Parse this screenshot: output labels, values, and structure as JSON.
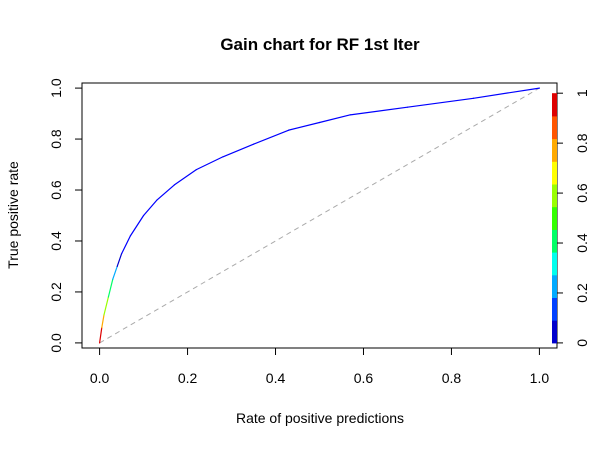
{
  "chart_data": {
    "type": "line",
    "title": "Gain chart for RF 1st Iter",
    "xlabel": "Rate of positive predictions",
    "ylabel": "True positive rate",
    "xlim": [
      -0.04,
      1.04
    ],
    "ylim": [
      -0.02,
      1.02
    ],
    "x_ticks": [
      0.0,
      0.2,
      0.4,
      0.6,
      0.8,
      1.0
    ],
    "x_tick_labels": [
      "0.0",
      "0.2",
      "0.4",
      "0.6",
      "0.8",
      "1.0"
    ],
    "y_ticks": [
      0.0,
      0.2,
      0.4,
      0.6,
      0.8,
      1.0
    ],
    "y_tick_labels": [
      "0.0",
      "0.2",
      "0.4",
      "0.6",
      "0.8",
      "1.0"
    ],
    "grid": false,
    "reference_line": {
      "style": "dashed",
      "color": "#aaaaaa",
      "x": [
        0,
        1
      ],
      "y": [
        0,
        1
      ]
    },
    "series": [
      {
        "x": [
          0,
          0.005,
          0.01,
          0.02,
          0.03,
          0.04,
          0.05,
          0.07,
          0.1,
          0.13,
          0.17,
          0.22,
          0.28,
          0.35,
          0.43,
          0.5,
          0.57,
          0.7,
          0.85,
          1.0
        ],
        "y": [
          0,
          0.06,
          0.11,
          0.18,
          0.25,
          0.3,
          0.35,
          0.42,
          0.5,
          0.56,
          0.62,
          0.68,
          0.73,
          0.78,
          0.835,
          0.865,
          0.895,
          0.925,
          0.96,
          1.0
        ],
        "color": "#0000ff",
        "colorized_by_cutoff": true
      }
    ],
    "colorbar": {
      "position": "right",
      "ticks": [
        0,
        0.2,
        0.4,
        0.6,
        0.8,
        1
      ],
      "tick_labels": [
        "0",
        "0.2",
        "0.4",
        "0.6",
        "0.8",
        "1"
      ],
      "colors": [
        "#0000cc",
        "#0040ff",
        "#00aaff",
        "#00ffee",
        "#00ff66",
        "#33ff00",
        "#99ff00",
        "#ffff00",
        "#ffaa00",
        "#ff5500",
        "#dd0000"
      ]
    }
  }
}
